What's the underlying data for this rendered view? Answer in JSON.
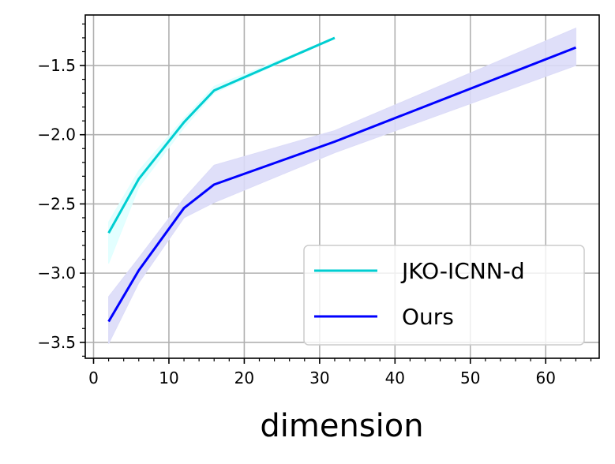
{
  "chart_data": {
    "type": "line",
    "title": "",
    "xlabel": "dimension",
    "ylabel": "",
    "xlim": [
      -1.1,
      67.1
    ],
    "ylim": [
      -3.615,
      -1.135
    ],
    "x_ticks": [
      0,
      10,
      20,
      30,
      40,
      50,
      60
    ],
    "x_tick_labels": [
      "0",
      "10",
      "20",
      "30",
      "40",
      "50",
      "60"
    ],
    "y_ticks": [
      -3.5,
      -3.0,
      -2.5,
      -2.0,
      -1.5
    ],
    "y_tick_labels": [
      "−3.5",
      "−3.0",
      "−2.5",
      "−2.0",
      "−1.5"
    ],
    "x_minor_step": 2,
    "y_minor_step": 0.1,
    "grid": true,
    "legend_position": "lower-right",
    "series": [
      {
        "name": "JKO-ICNN-d",
        "color": "#00CED1",
        "band_color": "#E0FFFF",
        "x": [
          2,
          6,
          12,
          16,
          32
        ],
        "y": [
          -2.71,
          -2.32,
          -1.91,
          -1.68,
          -1.3
        ],
        "lower": [
          -2.93,
          -2.38,
          -1.95,
          -1.7,
          -1.3
        ],
        "upper": [
          -2.63,
          -2.26,
          -1.88,
          -1.65,
          -1.3
        ]
      },
      {
        "name": "Ours",
        "color": "#0000FF",
        "band_color": "#DCDCF8",
        "x": [
          2,
          6,
          12,
          16,
          32,
          64
        ],
        "y": [
          -3.35,
          -2.98,
          -2.53,
          -2.36,
          -2.05,
          -1.37
        ],
        "lower": [
          -3.51,
          -3.07,
          -2.6,
          -2.49,
          -2.13,
          -1.5
        ],
        "upper": [
          -3.17,
          -2.89,
          -2.46,
          -2.22,
          -1.97,
          -1.23
        ]
      }
    ]
  }
}
